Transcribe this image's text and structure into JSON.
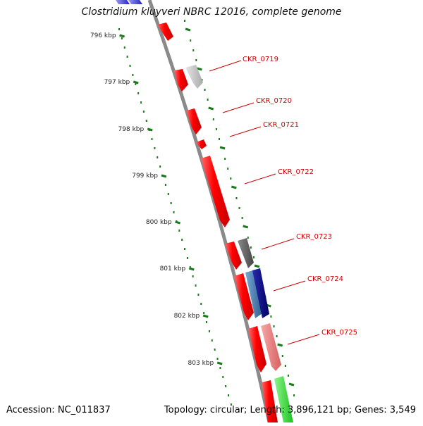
{
  "title": "Clostridium kluyveri NBRC 12016, complete genome",
  "footer": {
    "accession": "Accession: NC_011837",
    "summary": "Topology: circular; Length: 3,896,121 bp; Genes: 3,549"
  },
  "ticks": [
    {
      "label": "796 kbp"
    },
    {
      "label": "797 kbp"
    },
    {
      "label": "798 kbp"
    },
    {
      "label": "799 kbp"
    },
    {
      "label": "800 kbp"
    },
    {
      "label": "801 kbp"
    },
    {
      "label": "802 kbp"
    },
    {
      "label": "803 kbp"
    }
  ],
  "genes": [
    {
      "label": "CKR_0719"
    },
    {
      "label": "CKR_0720"
    },
    {
      "label": "CKR_0721"
    },
    {
      "label": "CKR_0722"
    },
    {
      "label": "CKR_0723"
    },
    {
      "label": "CKR_0724"
    },
    {
      "label": "CKR_0725"
    }
  ],
  "colors": {
    "backbone": "#8a8a8a",
    "cds": "#ff0000",
    "ruler": "#1a7a1a",
    "gene_label": "#cc0000",
    "feature_gray_light": "#c8c8c8",
    "feature_gray_dark": "#666666",
    "feature_blue": "#4a7fb0",
    "feature_navy": "#000088",
    "feature_pink": "#f08080",
    "feature_green": "#33dd33"
  }
}
